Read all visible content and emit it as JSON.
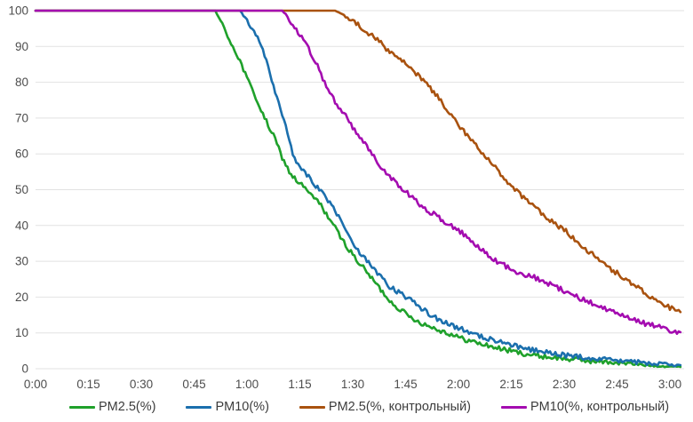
{
  "chart_data": {
    "type": "line",
    "title": "",
    "background": "#ffffff",
    "grid": "horizontal",
    "grid_color": "#e2e2e2",
    "axis_text_color": "#4d4d4d",
    "legend_position": "bottom",
    "x_axis": {
      "label": "",
      "unit": "h:mm",
      "range_minutes": [
        0,
        180
      ],
      "tick_minutes": [
        0,
        15,
        30,
        45,
        60,
        75,
        90,
        105,
        120,
        135,
        150,
        165,
        180
      ],
      "tick_labels": [
        "0:00",
        "0:15",
        "0:30",
        "0:45",
        "1:00",
        "1:15",
        "1:30",
        "1:45",
        "2:00",
        "2:15",
        "2:30",
        "2:45",
        "3:00"
      ]
    },
    "y_axis": {
      "label": "",
      "unit": "%",
      "range": [
        0,
        100
      ],
      "ticks": [
        0,
        10,
        20,
        30,
        40,
        50,
        60,
        70,
        80,
        90,
        100
      ]
    },
    "series": [
      {
        "name": "PM2.5(%)",
        "color": "#1fa12b",
        "points": [
          [
            0,
            100
          ],
          [
            51,
            100
          ],
          [
            52.5,
            97
          ],
          [
            54,
            94
          ],
          [
            56,
            90
          ],
          [
            58,
            86
          ],
          [
            60,
            81
          ],
          [
            62,
            77
          ],
          [
            64,
            72
          ],
          [
            66,
            68
          ],
          [
            68,
            64
          ],
          [
            70,
            59
          ],
          [
            72,
            55
          ],
          [
            74,
            52.5
          ],
          [
            76,
            51
          ],
          [
            78,
            48.5
          ],
          [
            80,
            47
          ],
          [
            82,
            44
          ],
          [
            84,
            41
          ],
          [
            87,
            36
          ],
          [
            91,
            30.5
          ],
          [
            94,
            27
          ],
          [
            98,
            22
          ],
          [
            101,
            18.5
          ],
          [
            106,
            14.6
          ],
          [
            110,
            12.5
          ],
          [
            114,
            11
          ],
          [
            118,
            9.6
          ],
          [
            121,
            8.4
          ],
          [
            126,
            7
          ],
          [
            131,
            5.8
          ],
          [
            136,
            4.7
          ],
          [
            141,
            3.8
          ],
          [
            146,
            3.2
          ],
          [
            151,
            2.7
          ],
          [
            156,
            2.3
          ],
          [
            161,
            1.9
          ],
          [
            166,
            1.6
          ],
          [
            171,
            1.2
          ],
          [
            176,
            0.8
          ],
          [
            181,
            0.6
          ],
          [
            183,
            0.5
          ]
        ]
      },
      {
        "name": "PM10(%)",
        "color": "#1b6fad",
        "points": [
          [
            0,
            100
          ],
          [
            58,
            100
          ],
          [
            59.5,
            98
          ],
          [
            61,
            95.5
          ],
          [
            63,
            93
          ],
          [
            64.5,
            89
          ],
          [
            66,
            84
          ],
          [
            68,
            77
          ],
          [
            70,
            71
          ],
          [
            71.5,
            66
          ],
          [
            73,
            60
          ],
          [
            74,
            58
          ],
          [
            76,
            55.5
          ],
          [
            78,
            53
          ],
          [
            80,
            50.5
          ],
          [
            83,
            47
          ],
          [
            85,
            44.5
          ],
          [
            88,
            38.5
          ],
          [
            91,
            33.5
          ],
          [
            94,
            30
          ],
          [
            98,
            25.5
          ],
          [
            101,
            22.5
          ],
          [
            106,
            19.5
          ],
          [
            110,
            16.5
          ],
          [
            114,
            14
          ],
          [
            118,
            12.2
          ],
          [
            121,
            11
          ],
          [
            126,
            9.2
          ],
          [
            131,
            7.6
          ],
          [
            136,
            6.3
          ],
          [
            141,
            5.2
          ],
          [
            146,
            4.3
          ],
          [
            151,
            3.6
          ],
          [
            156,
            3.1
          ],
          [
            161,
            2.6
          ],
          [
            166,
            2.2
          ],
          [
            171,
            1.8
          ],
          [
            176,
            1.4
          ],
          [
            181,
            1.1
          ],
          [
            183,
            1
          ]
        ]
      },
      {
        "name": "PM2.5(%, контрольный)",
        "color": "#a9520f",
        "points": [
          [
            0,
            100
          ],
          [
            85,
            100
          ],
          [
            87,
            99
          ],
          [
            90,
            97
          ],
          [
            93,
            95
          ],
          [
            96,
            92.5
          ],
          [
            98,
            91
          ],
          [
            101,
            88
          ],
          [
            103,
            86.5
          ],
          [
            106,
            84.5
          ],
          [
            110,
            80.5
          ],
          [
            114,
            76
          ],
          [
            118,
            71
          ],
          [
            121,
            67
          ],
          [
            126,
            61
          ],
          [
            131,
            55.5
          ],
          [
            136,
            50
          ],
          [
            141,
            45.5
          ],
          [
            146,
            41.5
          ],
          [
            151,
            38
          ],
          [
            156,
            33.5
          ],
          [
            161,
            29.5
          ],
          [
            166,
            26
          ],
          [
            171,
            22.5
          ],
          [
            176,
            19
          ],
          [
            181,
            16.5
          ],
          [
            183,
            15.8
          ]
        ]
      },
      {
        "name": "PM10(%, контрольный)",
        "color": "#a40cb0",
        "points": [
          [
            0,
            100
          ],
          [
            70,
            100
          ],
          [
            71,
            99
          ],
          [
            73,
            96
          ],
          [
            75.5,
            92.5
          ],
          [
            78,
            88.5
          ],
          [
            80,
            84.5
          ],
          [
            83,
            77.5
          ],
          [
            86,
            73
          ],
          [
            88,
            70.5
          ],
          [
            91,
            66
          ],
          [
            94,
            62
          ],
          [
            98,
            56.5
          ],
          [
            101,
            53
          ],
          [
            106,
            48.5
          ],
          [
            110,
            45
          ],
          [
            114,
            42.5
          ],
          [
            118,
            40
          ],
          [
            121,
            38
          ],
          [
            126,
            33.5
          ],
          [
            131,
            30
          ],
          [
            136,
            27
          ],
          [
            141,
            25.8
          ],
          [
            146,
            23.5
          ],
          [
            151,
            21.3
          ],
          [
            156,
            19
          ],
          [
            161,
            17
          ],
          [
            166,
            15.4
          ],
          [
            171,
            13.2
          ],
          [
            176,
            11.8
          ],
          [
            181,
            10.5
          ],
          [
            183,
            10.2
          ]
        ]
      }
    ],
    "legend": {
      "items": [
        "PM2.5(%)",
        "PM10(%)",
        "PM2.5(%, контрольный)",
        "PM10(%, контрольный)"
      ],
      "text_color": "#3c3c3c"
    }
  }
}
